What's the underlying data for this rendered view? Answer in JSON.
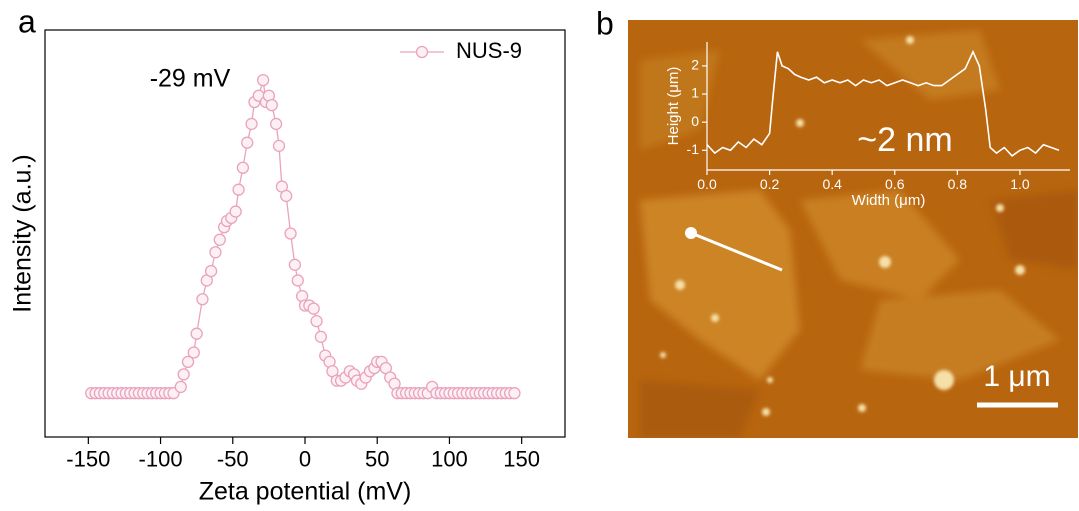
{
  "panel_labels": [
    "a",
    "b"
  ],
  "scale_bar": "1 μm",
  "chart_data": [
    {
      "type": "line",
      "x_label": "Zeta potential (mV)",
      "y_label": "Intensity (a.u.)",
      "annotation": "-29 mV",
      "xlim": [
        -180,
        180
      ],
      "xticks": [
        -150,
        -100,
        -50,
        0,
        50,
        100,
        150
      ],
      "ylim": [
        -0.14,
        1.16
      ],
      "legend": "top-right",
      "marker": "circle",
      "x": [
        -148,
        -145,
        -142,
        -139,
        -136,
        -133,
        -130,
        -127,
        -124,
        -121,
        -118,
        -115,
        -112,
        -109,
        -106,
        -103,
        -100,
        -97,
        -94,
        -91,
        -86,
        -84,
        -81,
        -77,
        -75,
        -71,
        -68,
        -65,
        -62,
        -59,
        -56,
        -54,
        -51,
        -48,
        -46,
        -43,
        -40,
        -37,
        -35,
        -32,
        -29,
        -27,
        -25,
        -23,
        -20,
        -18,
        -16,
        -13,
        -10,
        -7,
        -5,
        -2,
        0,
        3,
        6,
        8,
        11,
        14,
        17,
        19,
        22,
        25,
        28,
        31,
        34,
        36,
        39,
        42,
        45,
        48,
        50,
        53,
        56,
        59,
        62,
        64,
        67,
        70,
        73,
        76,
        79,
        82,
        85,
        88,
        91,
        94,
        97,
        100,
        103,
        106,
        109,
        112,
        115,
        118,
        121,
        124,
        127,
        130,
        133,
        136,
        139,
        142,
        145
      ],
      "series": [
        {
          "name": "NUS-9",
          "color": "#e9a3bd",
          "values": [
            0,
            0,
            0,
            0,
            0,
            0,
            0,
            0,
            0,
            0,
            0,
            0,
            0,
            0,
            0,
            0,
            0,
            0,
            0,
            0,
            0.02,
            0.06,
            0.1,
            0.13,
            0.19,
            0.3,
            0.36,
            0.39,
            0.45,
            0.49,
            0.53,
            0.55,
            0.56,
            0.58,
            0.65,
            0.72,
            0.8,
            0.86,
            0.93,
            0.95,
            1.0,
            0.93,
            0.95,
            0.92,
            0.86,
            0.79,
            0.66,
            0.63,
            0.51,
            0.41,
            0.36,
            0.31,
            0.28,
            0.28,
            0.27,
            0.23,
            0.18,
            0.12,
            0.1,
            0.07,
            0.04,
            0.04,
            0.05,
            0.07,
            0.06,
            0.04,
            0.03,
            0.05,
            0.07,
            0.08,
            0.1,
            0.1,
            0.08,
            0.05,
            0.03,
            0,
            0,
            0,
            0,
            0,
            0,
            0,
            0,
            0.02,
            0,
            0,
            0,
            0,
            0,
            0,
            0,
            0,
            0,
            0,
            0,
            0,
            0,
            0,
            0,
            0,
            0,
            0,
            0
          ]
        }
      ]
    },
    {
      "type": "line",
      "x_label": "Width (μm)",
      "y_label": "Height (μm)",
      "annotation": "~2 nm",
      "xlim": [
        0,
        1.16
      ],
      "xticks": [
        {
          "value": 0,
          "label": "0.0"
        },
        0.2,
        0.4,
        0.6,
        0.8,
        {
          "value": 1,
          "label": "1.0"
        }
      ],
      "ylim": [
        -1.7,
        2.85
      ],
      "yticks": [
        -1,
        0,
        1,
        2
      ],
      "x": [
        0,
        0.025,
        0.05,
        0.075,
        0.1,
        0.125,
        0.15,
        0.175,
        0.2,
        0.21,
        0.225,
        0.24,
        0.26,
        0.28,
        0.3,
        0.325,
        0.35,
        0.375,
        0.4,
        0.425,
        0.45,
        0.475,
        0.5,
        0.525,
        0.55,
        0.575,
        0.6,
        0.625,
        0.65,
        0.675,
        0.7,
        0.725,
        0.75,
        0.775,
        0.8,
        0.825,
        0.85,
        0.87,
        0.89,
        0.905,
        0.925,
        0.95,
        0.975,
        1.0,
        1.025,
        1.05,
        1.075,
        1.1,
        1.125
      ],
      "series": [
        {
          "color": "#ffffff",
          "values": [
            -0.8,
            -1.1,
            -0.9,
            -1.0,
            -0.7,
            -0.9,
            -0.6,
            -0.8,
            -0.4,
            0.8,
            2.5,
            2.0,
            1.9,
            1.7,
            1.6,
            1.5,
            1.6,
            1.4,
            1.5,
            1.4,
            1.5,
            1.3,
            1.5,
            1.4,
            1.5,
            1.3,
            1.4,
            1.5,
            1.4,
            1.3,
            1.4,
            1.3,
            1.3,
            1.5,
            1.7,
            1.9,
            2.5,
            2.0,
            0.5,
            -0.9,
            -1.1,
            -0.9,
            -1.2,
            -1.0,
            -0.9,
            -1.1,
            -0.8,
            -0.9,
            -1.0
          ]
        }
      ]
    }
  ]
}
